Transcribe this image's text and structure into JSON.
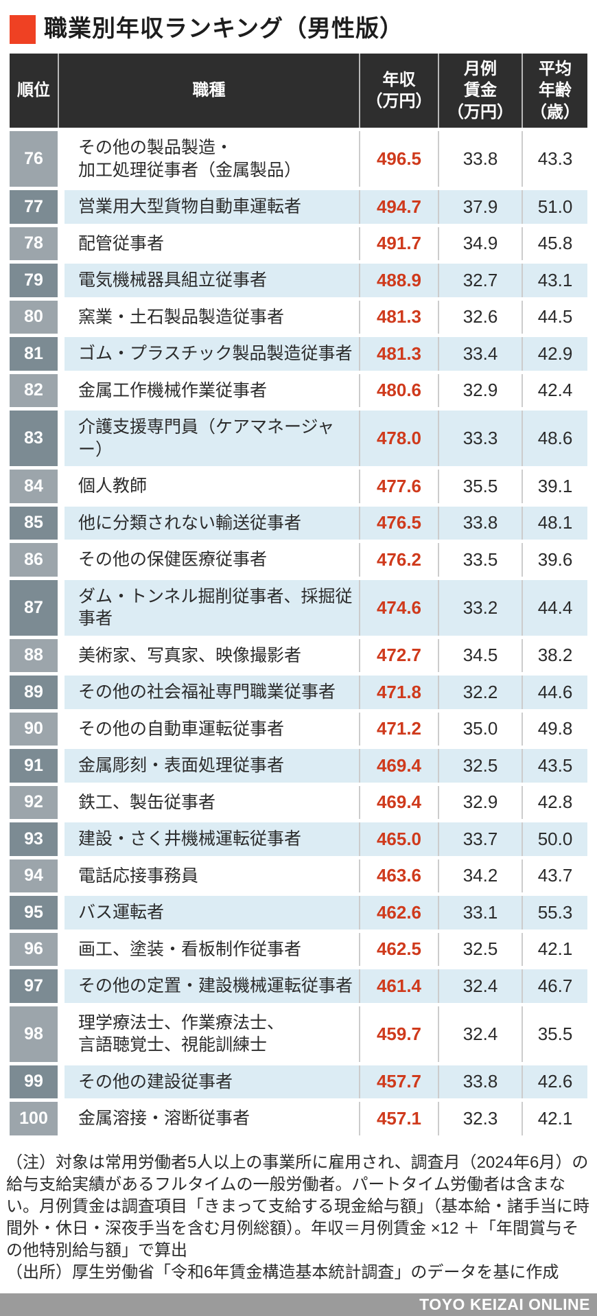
{
  "title": {
    "text": "職業別年収ランキング（男性版）",
    "accent_color": "#ef4123"
  },
  "table": {
    "columns": {
      "rank": "順位",
      "occupation": "職種",
      "income": "年収\n（万円）",
      "monthly_wage": "月例\n賃金\n（万円）",
      "avg_age": "平均\n年齢\n（歳）"
    },
    "rows": [
      {
        "rank": "76",
        "occupation": "その他の製品製造・\n加工処理従事者（金属製品）",
        "income": "496.5",
        "monthly_wage": "33.8",
        "avg_age": "43.3"
      },
      {
        "rank": "77",
        "occupation": "営業用大型貨物自動車運転者",
        "income": "494.7",
        "monthly_wage": "37.9",
        "avg_age": "51.0"
      },
      {
        "rank": "78",
        "occupation": "配管従事者",
        "income": "491.7",
        "monthly_wage": "34.9",
        "avg_age": "45.8"
      },
      {
        "rank": "79",
        "occupation": "電気機械器具組立従事者",
        "income": "488.9",
        "monthly_wage": "32.7",
        "avg_age": "43.1"
      },
      {
        "rank": "80",
        "occupation": "窯業・土石製品製造従事者",
        "income": "481.3",
        "monthly_wage": "32.6",
        "avg_age": "44.5"
      },
      {
        "rank": "81",
        "occupation": "ゴム・プラスチック製品製造従事者",
        "income": "481.3",
        "monthly_wage": "33.4",
        "avg_age": "42.9"
      },
      {
        "rank": "82",
        "occupation": "金属工作機械作業従事者",
        "income": "480.6",
        "monthly_wage": "32.9",
        "avg_age": "42.4"
      },
      {
        "rank": "83",
        "occupation": "介護支援専門員（ケアマネージャー）",
        "income": "478.0",
        "monthly_wage": "33.3",
        "avg_age": "48.6"
      },
      {
        "rank": "84",
        "occupation": "個人教師",
        "income": "477.6",
        "monthly_wage": "35.5",
        "avg_age": "39.1"
      },
      {
        "rank": "85",
        "occupation": "他に分類されない輸送従事者",
        "income": "476.5",
        "monthly_wage": "33.8",
        "avg_age": "48.1"
      },
      {
        "rank": "86",
        "occupation": "その他の保健医療従事者",
        "income": "476.2",
        "monthly_wage": "33.5",
        "avg_age": "39.6"
      },
      {
        "rank": "87",
        "occupation": "ダム・トンネル掘削従事者、採掘従事者",
        "income": "474.6",
        "monthly_wage": "33.2",
        "avg_age": "44.4"
      },
      {
        "rank": "88",
        "occupation": "美術家、写真家、映像撮影者",
        "income": "472.7",
        "monthly_wage": "34.5",
        "avg_age": "38.2"
      },
      {
        "rank": "89",
        "occupation": "その他の社会福祉専門職業従事者",
        "income": "471.8",
        "monthly_wage": "32.2",
        "avg_age": "44.6"
      },
      {
        "rank": "90",
        "occupation": "その他の自動車運転従事者",
        "income": "471.2",
        "monthly_wage": "35.0",
        "avg_age": "49.8"
      },
      {
        "rank": "91",
        "occupation": "金属彫刻・表面処理従事者",
        "income": "469.4",
        "monthly_wage": "32.5",
        "avg_age": "43.5"
      },
      {
        "rank": "92",
        "occupation": "鉄工、製缶従事者",
        "income": "469.4",
        "monthly_wage": "32.9",
        "avg_age": "42.8"
      },
      {
        "rank": "93",
        "occupation": "建設・さく井機械運転従事者",
        "income": "465.0",
        "monthly_wage": "33.7",
        "avg_age": "50.0"
      },
      {
        "rank": "94",
        "occupation": "電話応接事務員",
        "income": "463.6",
        "monthly_wage": "34.2",
        "avg_age": "43.7"
      },
      {
        "rank": "95",
        "occupation": "バス運転者",
        "income": "462.6",
        "monthly_wage": "33.1",
        "avg_age": "55.3"
      },
      {
        "rank": "96",
        "occupation": "画工、塗装・看板制作従事者",
        "income": "462.5",
        "monthly_wage": "32.5",
        "avg_age": "42.1"
      },
      {
        "rank": "97",
        "occupation": "その他の定置・建設機械運転従事者",
        "income": "461.4",
        "monthly_wage": "32.4",
        "avg_age": "46.7"
      },
      {
        "rank": "98",
        "occupation": "理学療法士、作業療法士、\n言語聴覚士、視能訓練士",
        "income": "459.7",
        "monthly_wage": "32.4",
        "avg_age": "35.5"
      },
      {
        "rank": "99",
        "occupation": "その他の建設従事者",
        "income": "457.7",
        "monthly_wage": "33.8",
        "avg_age": "42.6"
      },
      {
        "rank": "100",
        "occupation": "金属溶接・溶断従事者",
        "income": "457.1",
        "monthly_wage": "32.3",
        "avg_age": "42.1"
      }
    ]
  },
  "notes": {
    "note": "（注）対象は常用労働者5人以上の事業所に雇用され、調査月（2024年6月）の給与支給実績があるフルタイムの一般労働者。パートタイム労働者は含まない。月例賃金は調査項目「きまって支給する現金給与額」（基本給・諸手当に時間外・休日・深夜手当を含む月例総額）。年収＝月例賃金 ×12 ＋「年間賞与その他特別給与額」で算出",
    "source": "（出所）厚生労働省「令和6年賃金構造基本統計調査」のデータを基に作成"
  },
  "footer": {
    "brand": "TOYO KEIZAI ONLINE"
  },
  "colors": {
    "accent": "#ef4123",
    "header_bg": "#2e2e2e",
    "row_alt_blue": "#dcecf4",
    "rank_bg_light": "#9ca5ab",
    "rank_bg_dark": "#7c8b93",
    "income_red": "#cf3a1c",
    "footer_bar_gray": "#9b9b9b"
  },
  "chart_data": {
    "type": "table",
    "title": "職業別年収ランキング（男性版）",
    "columns": [
      "順位",
      "職種",
      "年収（万円）",
      "月例賃金（万円）",
      "平均年齢（歳）"
    ],
    "rows": [
      [
        76,
        "その他の製品製造・加工処理従事者（金属製品）",
        496.5,
        33.8,
        43.3
      ],
      [
        77,
        "営業用大型貨物自動車運転者",
        494.7,
        37.9,
        51.0
      ],
      [
        78,
        "配管従事者",
        491.7,
        34.9,
        45.8
      ],
      [
        79,
        "電気機械器具組立従事者",
        488.9,
        32.7,
        43.1
      ],
      [
        80,
        "窯業・土石製品製造従事者",
        481.3,
        32.6,
        44.5
      ],
      [
        81,
        "ゴム・プラスチック製品製造従事者",
        481.3,
        33.4,
        42.9
      ],
      [
        82,
        "金属工作機械作業従事者",
        480.6,
        32.9,
        42.4
      ],
      [
        83,
        "介護支援専門員（ケアマネージャー）",
        478.0,
        33.3,
        48.6
      ],
      [
        84,
        "個人教師",
        477.6,
        35.5,
        39.1
      ],
      [
        85,
        "他に分類されない輸送従事者",
        476.5,
        33.8,
        48.1
      ],
      [
        86,
        "その他の保健医療従事者",
        476.2,
        33.5,
        39.6
      ],
      [
        87,
        "ダム・トンネル掘削従事者、採掘従事者",
        474.6,
        33.2,
        44.4
      ],
      [
        88,
        "美術家、写真家、映像撮影者",
        472.7,
        34.5,
        38.2
      ],
      [
        89,
        "その他の社会福祉専門職業従事者",
        471.8,
        32.2,
        44.6
      ],
      [
        90,
        "その他の自動車運転従事者",
        471.2,
        35.0,
        49.8
      ],
      [
        91,
        "金属彫刻・表面処理従事者",
        469.4,
        32.5,
        43.5
      ],
      [
        92,
        "鉄工、製缶従事者",
        469.4,
        32.9,
        42.8
      ],
      [
        93,
        "建設・さく井機械運転従事者",
        465.0,
        33.7,
        50.0
      ],
      [
        94,
        "電話応接事務員",
        463.6,
        34.2,
        43.7
      ],
      [
        95,
        "バス運転者",
        462.6,
        33.1,
        55.3
      ],
      [
        96,
        "画工、塗装・看板制作従事者",
        462.5,
        32.5,
        42.1
      ],
      [
        97,
        "その他の定置・建設機械運転従事者",
        461.4,
        32.4,
        46.7
      ],
      [
        98,
        "理学療法士、作業療法士、言語聴覚士、視能訓練士",
        459.7,
        32.4,
        35.5
      ],
      [
        99,
        "その他の建設従事者",
        457.7,
        33.8,
        42.6
      ],
      [
        100,
        "金属溶接・溶断従事者",
        457.1,
        32.3,
        42.1
      ]
    ]
  }
}
